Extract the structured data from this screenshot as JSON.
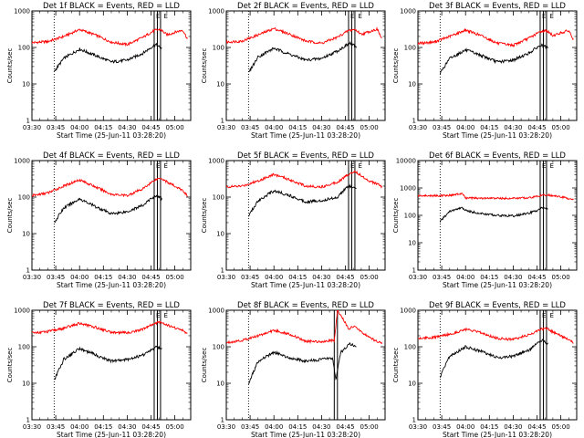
{
  "chart_data": [
    {
      "type": "line",
      "title": "Det 1f BLACK = Events, RED = LLD",
      "xlabel": "Start Time (25-Jun-11 03:28:20)",
      "ylabel": "Counts/sec",
      "y_scale": "log",
      "ylim": [
        1,
        1000
      ],
      "xlim": [
        "03:30",
        "05:10"
      ],
      "x_ticks": [
        "03:30",
        "03:45",
        "04:00",
        "04:15",
        "04:30",
        "04:45",
        "05:00"
      ],
      "y_ticks": [
        "1",
        "10",
        "100",
        "1000"
      ],
      "series": [
        {
          "color": "#ff0000",
          "x": [
            "03:30",
            "03:40",
            "03:50",
            "04:00",
            "04:10",
            "04:20",
            "04:30",
            "04:40",
            "04:47",
            "04:51",
            "04:55",
            "05:00",
            "05:05",
            "05:08"
          ],
          "values": [
            135,
            145,
            200,
            310,
            220,
            140,
            120,
            190,
            290,
            310,
            220,
            260,
            300,
            170
          ]
        },
        {
          "color": "#000000",
          "x": [
            "03:44",
            "03:50",
            "04:00",
            "04:10",
            "04:20",
            "04:30",
            "04:40",
            "04:45",
            "04:48",
            "04:52"
          ],
          "values": [
            22,
            50,
            90,
            60,
            40,
            45,
            70,
            100,
            120,
            90
          ]
        }
      ],
      "vlines": [
        {
          "x": "03:44",
          "style": "dotted"
        },
        {
          "x": "04:47",
          "style": "solid"
        },
        {
          "x": "04:49",
          "style": "solid"
        },
        {
          "x": "04:51",
          "style": "solid"
        }
      ],
      "marker_labels": [
        "E",
        "E"
      ]
    },
    {
      "type": "line",
      "title": "Det 2f BLACK = Events, RED = LLD",
      "xlabel": "Start Time (25-Jun-11 03:28:20)",
      "ylabel": "Counts/sec",
      "y_scale": "log",
      "ylim": [
        1,
        1000
      ],
      "xlim": [
        "03:30",
        "05:10"
      ],
      "x_ticks": [
        "03:30",
        "03:45",
        "04:00",
        "04:15",
        "04:30",
        "04:45",
        "05:00"
      ],
      "y_ticks": [
        "1",
        "10",
        "100",
        "1000"
      ],
      "series": [
        {
          "color": "#ff0000",
          "x": [
            "03:30",
            "03:40",
            "03:50",
            "04:00",
            "04:10",
            "04:20",
            "04:30",
            "04:40",
            "04:47",
            "04:51",
            "04:55",
            "05:00",
            "05:05",
            "05:08"
          ],
          "values": [
            140,
            150,
            220,
            330,
            230,
            150,
            130,
            190,
            290,
            310,
            230,
            270,
            320,
            170
          ]
        },
        {
          "color": "#000000",
          "x": [
            "03:44",
            "03:50",
            "04:00",
            "04:10",
            "04:20",
            "04:30",
            "04:40",
            "04:45",
            "04:48",
            "04:52"
          ],
          "values": [
            20,
            55,
            95,
            65,
            45,
            50,
            80,
            110,
            130,
            100
          ]
        }
      ],
      "vlines": [
        {
          "x": "03:44",
          "style": "dotted"
        },
        {
          "x": "04:47",
          "style": "solid"
        },
        {
          "x": "04:49",
          "style": "solid"
        },
        {
          "x": "04:51",
          "style": "solid"
        }
      ],
      "marker_labels": [
        "E",
        "E"
      ]
    },
    {
      "type": "line",
      "title": "Det 3f BLACK = Events, RED = LLD",
      "xlabel": "Start Time (25-Jun-11 03:28:20)",
      "ylabel": "Counts/sec",
      "y_scale": "log",
      "ylim": [
        1,
        1000
      ],
      "xlim": [
        "03:30",
        "05:10"
      ],
      "x_ticks": [
        "03:30",
        "03:45",
        "04:00",
        "04:15",
        "04:30",
        "04:45",
        "05:00"
      ],
      "y_ticks": [
        "1",
        "10",
        "100",
        "1000"
      ],
      "series": [
        {
          "color": "#ff0000",
          "x": [
            "03:30",
            "03:40",
            "03:50",
            "04:00",
            "04:10",
            "04:20",
            "04:30",
            "04:40",
            "04:47",
            "04:51",
            "04:55",
            "05:00",
            "05:05",
            "05:08"
          ],
          "values": [
            130,
            140,
            200,
            300,
            210,
            130,
            115,
            180,
            270,
            290,
            210,
            250,
            290,
            160
          ]
        },
        {
          "color": "#000000",
          "x": [
            "03:44",
            "03:50",
            "04:00",
            "04:10",
            "04:20",
            "04:30",
            "04:40",
            "04:45",
            "04:48",
            "04:52"
          ],
          "values": [
            20,
            50,
            85,
            60,
            40,
            45,
            70,
            100,
            115,
            95
          ]
        }
      ],
      "vlines": [
        {
          "x": "03:44",
          "style": "dotted"
        },
        {
          "x": "04:47",
          "style": "solid"
        },
        {
          "x": "04:49",
          "style": "solid"
        },
        {
          "x": "04:51",
          "style": "solid"
        }
      ],
      "marker_labels": [
        "E",
        "E"
      ]
    },
    {
      "type": "line",
      "title": "Det 4f BLACK = Events, RED = LLD",
      "xlabel": "Start Time (25-Jun-11 03:28:20)",
      "ylabel": "Counts/sec",
      "y_scale": "log",
      "ylim": [
        1,
        1000
      ],
      "xlim": [
        "03:30",
        "05:10"
      ],
      "x_ticks": [
        "03:30",
        "03:45",
        "04:00",
        "04:15",
        "04:30",
        "04:45",
        "05:00"
      ],
      "y_ticks": [
        "1",
        "10",
        "100",
        "1000"
      ],
      "series": [
        {
          "color": "#ff0000",
          "x": [
            "03:30",
            "03:40",
            "03:50",
            "04:00",
            "04:10",
            "04:20",
            "04:30",
            "04:40",
            "04:47",
            "04:51",
            "04:55",
            "05:00",
            "05:05",
            "05:08"
          ],
          "values": [
            110,
            130,
            200,
            300,
            190,
            120,
            110,
            170,
            290,
            340,
            260,
            200,
            150,
            110
          ]
        },
        {
          "color": "#000000",
          "x": [
            "03:44",
            "03:50",
            "04:00",
            "04:10",
            "04:20",
            "04:30",
            "04:40",
            "04:45",
            "04:48",
            "04:52"
          ],
          "values": [
            20,
            50,
            90,
            55,
            35,
            40,
            60,
            90,
            110,
            90
          ]
        }
      ],
      "vlines": [
        {
          "x": "03:44",
          "style": "dotted"
        },
        {
          "x": "04:47",
          "style": "solid"
        },
        {
          "x": "04:49",
          "style": "solid"
        },
        {
          "x": "04:51",
          "style": "solid"
        }
      ],
      "marker_labels": [
        "E",
        "E"
      ]
    },
    {
      "type": "line",
      "title": "Det 5f BLACK = Events, RED = LLD",
      "xlabel": "Start Time (25-Jun-11 03:28:20)",
      "ylabel": "Counts/sec",
      "y_scale": "log",
      "ylim": [
        1,
        1000
      ],
      "xlim": [
        "03:30",
        "05:10"
      ],
      "x_ticks": [
        "03:30",
        "03:45",
        "04:00",
        "04:15",
        "04:30",
        "04:45",
        "05:00"
      ],
      "y_ticks": [
        "1",
        "10",
        "100",
        "1000"
      ],
      "series": [
        {
          "color": "#ff0000",
          "x": [
            "03:30",
            "03:40",
            "03:50",
            "04:00",
            "04:10",
            "04:20",
            "04:30",
            "04:40",
            "04:47",
            "04:51",
            "04:55",
            "05:00",
            "05:05",
            "05:08"
          ],
          "values": [
            190,
            200,
            280,
            420,
            300,
            200,
            190,
            260,
            420,
            520,
            380,
            280,
            230,
            190
          ]
        },
        {
          "color": "#000000",
          "x": [
            "03:44",
            "03:50",
            "04:00",
            "04:10",
            "04:20",
            "04:30",
            "04:40",
            "04:45",
            "04:48",
            "04:52"
          ],
          "values": [
            30,
            80,
            150,
            110,
            75,
            80,
            100,
            170,
            200,
            160
          ]
        }
      ],
      "vlines": [
        {
          "x": "03:44",
          "style": "dotted"
        },
        {
          "x": "04:47",
          "style": "solid"
        },
        {
          "x": "04:49",
          "style": "solid"
        },
        {
          "x": "04:51",
          "style": "solid"
        }
      ],
      "marker_labels": [
        "E",
        "E"
      ]
    },
    {
      "type": "line",
      "title": "Det 6f BLACK = Events, RED = LLD",
      "xlabel": "Start Time (25-Jun-11 03:28:20)",
      "ylabel": "Counts/sec",
      "y_scale": "log",
      "ylim": [
        1,
        10000
      ],
      "xlim": [
        "03:30",
        "05:10"
      ],
      "x_ticks": [
        "03:30",
        "03:45",
        "04:00",
        "04:15",
        "04:30",
        "04:45",
        "05:00"
      ],
      "y_ticks": [
        "1",
        "10",
        "100",
        "1000",
        "10000"
      ],
      "series": [
        {
          "color": "#ff0000",
          "x": [
            "03:30",
            "03:40",
            "03:50",
            "03:58",
            "04:00",
            "04:10",
            "04:20",
            "04:30",
            "04:40",
            "04:47",
            "04:51",
            "04:55",
            "05:00",
            "05:05",
            "05:08"
          ],
          "values": [
            520,
            520,
            540,
            620,
            430,
            420,
            420,
            420,
            440,
            520,
            560,
            520,
            470,
            410,
            390
          ]
        },
        {
          "color": "#000000",
          "x": [
            "03:44",
            "03:50",
            "03:58",
            "04:00",
            "04:10",
            "04:20",
            "04:30",
            "04:40",
            "04:45",
            "04:48",
            "04:52"
          ],
          "values": [
            60,
            140,
            190,
            150,
            115,
            100,
            95,
            120,
            150,
            200,
            170
          ]
        }
      ],
      "vlines": [
        {
          "x": "03:44",
          "style": "dotted"
        },
        {
          "x": "04:47",
          "style": "solid"
        },
        {
          "x": "04:49",
          "style": "solid"
        },
        {
          "x": "04:51",
          "style": "solid"
        }
      ],
      "marker_labels": [
        "E",
        "E"
      ]
    },
    {
      "type": "line",
      "title": "Det 7f BLACK = Events, RED = LLD",
      "xlabel": "Start Time (25-Jun-11 03:28:20)",
      "ylabel": "Counts/sec",
      "y_scale": "log",
      "ylim": [
        1,
        1000
      ],
      "xlim": [
        "03:30",
        "05:10"
      ],
      "x_ticks": [
        "03:30",
        "03:45",
        "04:00",
        "04:15",
        "04:30",
        "04:45",
        "05:00"
      ],
      "y_ticks": [
        "1",
        "10",
        "100",
        "1000"
      ],
      "series": [
        {
          "color": "#ff0000",
          "x": [
            "03:30",
            "03:40",
            "03:50",
            "04:00",
            "04:10",
            "04:20",
            "04:30",
            "04:40",
            "04:47",
            "04:51",
            "04:55",
            "05:00",
            "05:05",
            "05:08"
          ],
          "values": [
            240,
            260,
            320,
            440,
            340,
            250,
            240,
            300,
            430,
            480,
            400,
            330,
            280,
            230
          ]
        },
        {
          "color": "#000000",
          "x": [
            "03:44",
            "03:50",
            "04:00",
            "04:10",
            "04:20",
            "04:30",
            "04:40",
            "04:45",
            "04:48",
            "04:52"
          ],
          "values": [
            12,
            45,
            90,
            60,
            40,
            45,
            60,
            80,
            100,
            85
          ]
        }
      ],
      "vlines": [
        {
          "x": "03:44",
          "style": "dotted"
        },
        {
          "x": "04:47",
          "style": "solid"
        },
        {
          "x": "04:49",
          "style": "solid"
        },
        {
          "x": "04:51",
          "style": "solid"
        }
      ],
      "marker_labels": [
        "E",
        "E"
      ]
    },
    {
      "type": "line",
      "title": "Det 8f BLACK = Events, RED = LLD",
      "xlabel": "Start Time (25-Jun-11 03:28:20)",
      "ylabel": "Counts/sec",
      "y_scale": "log",
      "ylim": [
        1,
        1000
      ],
      "xlim": [
        "03:30",
        "05:10"
      ],
      "x_ticks": [
        "03:30",
        "03:45",
        "04:00",
        "04:15",
        "04:30",
        "04:45",
        "05:00"
      ],
      "y_ticks": [
        "1",
        "10",
        "100",
        "1000"
      ],
      "series": [
        {
          "color": "#ff0000",
          "x": [
            "03:30",
            "03:40",
            "03:50",
            "04:00",
            "04:10",
            "04:20",
            "04:30",
            "04:38",
            "04:40",
            "04:47",
            "04:51",
            "04:55",
            "05:00",
            "05:05",
            "05:08"
          ],
          "values": [
            130,
            150,
            200,
            280,
            220,
            140,
            140,
            150,
            1000,
            320,
            350,
            260,
            180,
            140,
            120
          ]
        },
        {
          "color": "#000000",
          "x": [
            "03:44",
            "03:50",
            "04:00",
            "04:10",
            "04:20",
            "04:30",
            "04:37",
            "04:39",
            "04:42",
            "04:48",
            "04:52"
          ],
          "values": [
            10,
            40,
            70,
            50,
            40,
            45,
            50,
            12,
            70,
            120,
            100
          ]
        }
      ],
      "vlines": [
        {
          "x": "03:44",
          "style": "dotted"
        },
        {
          "x": "04:38",
          "style": "solid"
        },
        {
          "x": "04:40",
          "style": "solid"
        }
      ],
      "marker_labels": []
    },
    {
      "type": "line",
      "title": "Det 9f BLACK = Events, RED = LLD",
      "xlabel": "Start Time (25-Jun-11 03:28:20)",
      "ylabel": "Counts/sec",
      "y_scale": "log",
      "ylim": [
        1,
        1000
      ],
      "xlim": [
        "03:30",
        "05:10"
      ],
      "x_ticks": [
        "03:30",
        "03:45",
        "04:00",
        "04:15",
        "04:30",
        "04:45",
        "05:00"
      ],
      "y_ticks": [
        "1",
        "10",
        "100",
        "1000"
      ],
      "series": [
        {
          "color": "#ff0000",
          "x": [
            "03:30",
            "03:40",
            "03:50",
            "04:00",
            "04:10",
            "04:20",
            "04:30",
            "04:40",
            "04:47",
            "04:51",
            "04:55",
            "05:00",
            "05:05",
            "05:08"
          ],
          "values": [
            170,
            180,
            220,
            300,
            240,
            170,
            160,
            210,
            300,
            320,
            250,
            200,
            150,
            130
          ]
        },
        {
          "color": "#000000",
          "x": [
            "03:44",
            "03:50",
            "04:00",
            "04:10",
            "04:20",
            "04:30",
            "04:40",
            "04:45",
            "04:48",
            "04:52"
          ],
          "values": [
            15,
            55,
            100,
            75,
            50,
            55,
            80,
            120,
            150,
            120
          ]
        }
      ],
      "vlines": [
        {
          "x": "03:44",
          "style": "dotted"
        },
        {
          "x": "04:47",
          "style": "solid"
        },
        {
          "x": "04:49",
          "style": "solid"
        },
        {
          "x": "04:51",
          "style": "solid"
        }
      ],
      "marker_labels": [
        "E",
        "E"
      ]
    }
  ]
}
